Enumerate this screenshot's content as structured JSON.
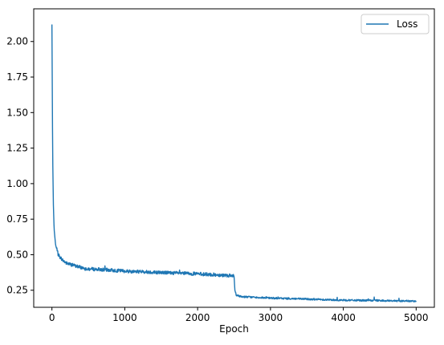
{
  "chart_data": {
    "type": "line",
    "title": "",
    "xlabel": "Epoch",
    "ylabel": "",
    "xlim": [
      -250,
      5250
    ],
    "ylim": [
      0.13,
      2.23
    ],
    "xticks": [
      0,
      1000,
      2000,
      3000,
      4000,
      5000
    ],
    "xtick_labels": [
      "0",
      "1000",
      "2000",
      "3000",
      "4000",
      "5000"
    ],
    "yticks": [
      0.25,
      0.5,
      0.75,
      1.0,
      1.25,
      1.5,
      1.75,
      2.0
    ],
    "ytick_labels": [
      "0.25",
      "0.50",
      "0.75",
      "1.00",
      "1.25",
      "1.50",
      "1.75",
      "2.00"
    ],
    "grid": false,
    "legend": {
      "position": "top-right",
      "entries": [
        "Loss"
      ]
    },
    "series": [
      {
        "name": "Loss",
        "color": "#1f77b4",
        "x": [
          0,
          10,
          20,
          30,
          50,
          75,
          100,
          150,
          200,
          300,
          400,
          500,
          700,
          1000,
          1500,
          2000,
          2400,
          2500,
          2510,
          2530,
          2600,
          3000,
          3500,
          4000,
          4500,
          5000
        ],
        "y": [
          2.12,
          1.2,
          0.85,
          0.68,
          0.57,
          0.52,
          0.49,
          0.46,
          0.44,
          0.425,
          0.41,
          0.4,
          0.395,
          0.385,
          0.375,
          0.365,
          0.355,
          0.35,
          0.255,
          0.215,
          0.205,
          0.195,
          0.188,
          0.18,
          0.177,
          0.173
        ]
      }
    ]
  }
}
